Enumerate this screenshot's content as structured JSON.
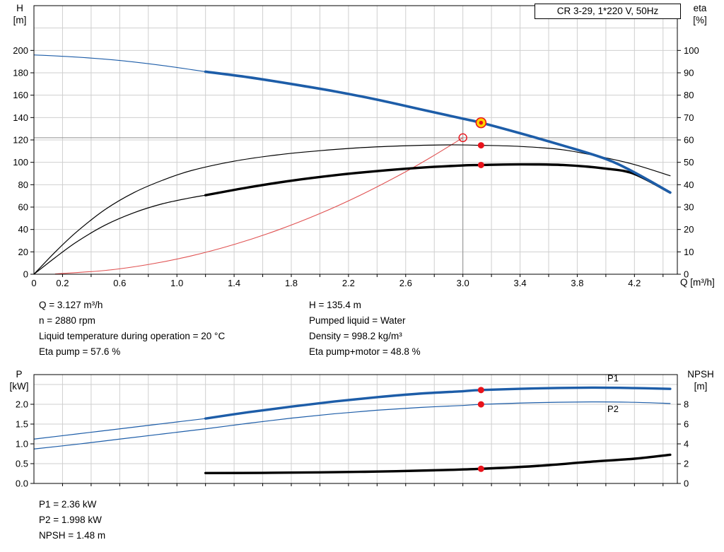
{
  "header": {
    "pump_title": "CR 3-29, 1*220 V, 50Hz"
  },
  "readouts": {
    "left": [
      "Q = 3.127 m³/h",
      "n = 2880 rpm",
      "Liquid temperature during operation = 20 °C",
      "Eta pump = 57.6 %"
    ],
    "right": [
      "H = 135.4 m",
      "Pumped liquid = Water",
      "Density = 998.2 kg/m³",
      "Eta pump+motor = 48.8 %"
    ],
    "bottom": [
      "P1 = 2.36 kW",
      "P2 = 1.998 kW",
      "NPSH = 1.48 m"
    ]
  },
  "colors": {
    "curve_blue": "#1d5da8",
    "curve_black": "#000000",
    "system_red": "#e05252",
    "marker_red": "#e8131b",
    "marker_yellow": "#ffd400",
    "grid": "#cfcfcf",
    "crosshair": "#909090",
    "frame": "#000000"
  },
  "chart_data": [
    {
      "id": "qh-chart",
      "type": "line",
      "x_axis": {
        "label": "Q [m³/h]",
        "min": 0,
        "max": 4.5,
        "grid_step": 0.2,
        "ticks": [
          [
            0,
            "0"
          ],
          [
            0.2,
            "0.2"
          ],
          [
            0.6,
            "0.6"
          ],
          [
            1.0,
            "1.0"
          ],
          [
            1.4,
            "1.4"
          ],
          [
            1.8,
            "1.8"
          ],
          [
            2.2,
            "2.2"
          ],
          [
            2.6,
            "2.6"
          ],
          [
            3.0,
            "3.0"
          ],
          [
            3.4,
            "3.4"
          ],
          [
            3.8,
            "3.8"
          ],
          [
            4.2,
            "4.2"
          ]
        ]
      },
      "y_left": {
        "title": "H",
        "unit": "[m]",
        "min": 0,
        "max": 240,
        "grid_step": 20,
        "ticks": [
          [
            0,
            "0"
          ],
          [
            20,
            "20"
          ],
          [
            40,
            "40"
          ],
          [
            60,
            "60"
          ],
          [
            80,
            "80"
          ],
          [
            100,
            "100"
          ],
          [
            120,
            "120"
          ],
          [
            140,
            "140"
          ],
          [
            160,
            "160"
          ],
          [
            180,
            "180"
          ],
          [
            200,
            "200"
          ]
        ]
      },
      "y_right": {
        "title": "eta",
        "unit": "[%]",
        "min": 0,
        "max": 120,
        "ticks": [
          [
            0,
            "0"
          ],
          [
            10,
            "10"
          ],
          [
            20,
            "20"
          ],
          [
            30,
            "30"
          ],
          [
            40,
            "40"
          ],
          [
            50,
            "50"
          ],
          [
            60,
            "60"
          ],
          [
            70,
            "70"
          ],
          [
            80,
            "80"
          ],
          [
            90,
            "90"
          ],
          [
            100,
            "100"
          ]
        ]
      },
      "crosshair": {
        "x": 3.0,
        "y": 122,
        "y_top": 139
      },
      "series": [
        {
          "name": "system-curve",
          "axis": "left",
          "color_key": "system_red",
          "width": 1.1,
          "points": [
            [
              0.15,
              0.3
            ],
            [
              0.5,
              3.4
            ],
            [
              0.8,
              8.7
            ],
            [
              1.1,
              16.4
            ],
            [
              1.4,
              26.6
            ],
            [
              1.7,
              39.2
            ],
            [
              2.0,
              54.2
            ],
            [
              2.3,
              71.7
            ],
            [
              2.6,
              91.6
            ],
            [
              2.8,
              106.3
            ],
            [
              3.0,
              122
            ]
          ]
        },
        {
          "name": "eta-pump-curve",
          "axis": "right",
          "color_key": "curve_black",
          "width": 1.2,
          "points": [
            [
              0,
              0
            ],
            [
              0.15,
              10
            ],
            [
              0.3,
              19
            ],
            [
              0.5,
              29
            ],
            [
              0.7,
              36.5
            ],
            [
              0.9,
              42
            ],
            [
              1.1,
              46.3
            ],
            [
              1.4,
              50.5
            ],
            [
              1.7,
              53.3
            ],
            [
              2.0,
              55.2
            ],
            [
              2.3,
              56.6
            ],
            [
              2.6,
              57.4
            ],
            [
              2.9,
              57.8
            ],
            [
              3.127,
              57.6
            ],
            [
              3.4,
              57.1
            ],
            [
              3.7,
              55.6
            ],
            [
              4.0,
              52
            ],
            [
              4.2,
              49
            ],
            [
              4.45,
              44
            ]
          ]
        },
        {
          "name": "eta-pump-motor-curve-min-flow",
          "axis": "right",
          "color_key": "curve_black",
          "width": 1.2,
          "points": [
            [
              0,
              0
            ],
            [
              0.15,
              7.5
            ],
            [
              0.3,
              14.5
            ],
            [
              0.5,
              22
            ],
            [
              0.7,
              27.5
            ],
            [
              0.9,
              31.5
            ],
            [
              1.1,
              34.2
            ],
            [
              1.2,
              35.3
            ]
          ]
        },
        {
          "name": "eta-pump-motor-curve",
          "axis": "right",
          "color_key": "curve_black",
          "width": 3.4,
          "points": [
            [
              1.2,
              35.3
            ],
            [
              1.5,
              38.8
            ],
            [
              1.8,
              41.8
            ],
            [
              2.1,
              44.2
            ],
            [
              2.4,
              46.1
            ],
            [
              2.7,
              47.6
            ],
            [
              3.0,
              48.6
            ],
            [
              3.127,
              48.8
            ],
            [
              3.4,
              49.1
            ],
            [
              3.7,
              48.8
            ],
            [
              4.0,
              47.2
            ],
            [
              4.2,
              44.8
            ],
            [
              4.45,
              36.5
            ]
          ]
        },
        {
          "name": "qh-curve-min-flow",
          "axis": "left",
          "color_key": "curve_blue",
          "width": 1.2,
          "points": [
            [
              0,
              196
            ],
            [
              0.3,
              194
            ],
            [
              0.6,
              191
            ],
            [
              0.9,
              186.5
            ],
            [
              1.2,
              181
            ]
          ]
        },
        {
          "name": "qh-curve",
          "axis": "left",
          "color_key": "curve_blue",
          "width": 3.6,
          "points": [
            [
              1.2,
              181
            ],
            [
              1.5,
              176
            ],
            [
              1.8,
              170
            ],
            [
              2.1,
              163.5
            ],
            [
              2.4,
              156
            ],
            [
              2.7,
              147.5
            ],
            [
              3.0,
              139
            ],
            [
              3.127,
              135.4
            ],
            [
              3.4,
              126
            ],
            [
              3.7,
              115
            ],
            [
              4.0,
              103
            ],
            [
              4.2,
              91
            ],
            [
              4.45,
              73
            ]
          ]
        }
      ],
      "markers": [
        {
          "name": "requested-duty-point",
          "type": "open",
          "axis": "left",
          "x": 3.0,
          "y": 122
        },
        {
          "name": "operating-point",
          "type": "ring",
          "axis": "left",
          "x": 3.127,
          "y": 135.4
        },
        {
          "name": "eta-pump-point",
          "type": "dot",
          "axis": "right",
          "x": 3.127,
          "y": 57.6
        },
        {
          "name": "eta-pump-motor-point",
          "type": "dot",
          "axis": "right",
          "x": 3.127,
          "y": 48.8
        }
      ],
      "annotations": []
    },
    {
      "id": "power-npsh-chart",
      "type": "line",
      "x_axis": {
        "label": "",
        "min": 0,
        "max": 4.5,
        "grid_step": 0.2,
        "ticks": []
      },
      "y_left": {
        "title": "P",
        "unit": "[kW]",
        "min": 0,
        "max": 2.75,
        "grid_step": 0.5,
        "ticks": [
          [
            0,
            "0.0"
          ],
          [
            0.5,
            "0.5"
          ],
          [
            1,
            "1.0"
          ],
          [
            1.5,
            "1.5"
          ],
          [
            2,
            "2.0"
          ]
        ]
      },
      "y_right": {
        "title": "NPSH",
        "unit": "[m]",
        "min": 0,
        "max": 11,
        "ticks": [
          [
            0,
            "0"
          ],
          [
            2,
            "2"
          ],
          [
            4,
            "4"
          ],
          [
            6,
            "6"
          ],
          [
            8,
            "8"
          ]
        ]
      },
      "series": [
        {
          "name": "p1-curve-min-flow",
          "axis": "left",
          "color_key": "curve_blue",
          "width": 1.2,
          "points": [
            [
              0,
              1.12
            ],
            [
              0.3,
              1.25
            ],
            [
              0.6,
              1.38
            ],
            [
              0.9,
              1.51
            ],
            [
              1.2,
              1.64
            ]
          ]
        },
        {
          "name": "p1-curve",
          "axis": "left",
          "color_key": "curve_blue",
          "width": 3.4,
          "points": [
            [
              1.2,
              1.64
            ],
            [
              1.5,
              1.8
            ],
            [
              1.8,
              1.94
            ],
            [
              2.1,
              2.07
            ],
            [
              2.4,
              2.18
            ],
            [
              2.7,
              2.27
            ],
            [
              3.0,
              2.33
            ],
            [
              3.127,
              2.36
            ],
            [
              3.5,
              2.4
            ],
            [
              3.9,
              2.42
            ],
            [
              4.2,
              2.41
            ],
            [
              4.45,
              2.39
            ]
          ]
        },
        {
          "name": "p2-curve",
          "axis": "left",
          "color_key": "curve_blue",
          "width": 1.2,
          "points": [
            [
              0,
              0.87
            ],
            [
              0.3,
              0.99
            ],
            [
              0.6,
              1.12
            ],
            [
              0.9,
              1.25
            ],
            [
              1.2,
              1.38
            ],
            [
              1.5,
              1.52
            ],
            [
              1.8,
              1.65
            ],
            [
              2.1,
              1.76
            ],
            [
              2.4,
              1.85
            ],
            [
              2.7,
              1.92
            ],
            [
              3.0,
              1.97
            ],
            [
              3.127,
              1.998
            ],
            [
              3.5,
              2.04
            ],
            [
              3.9,
              2.06
            ],
            [
              4.2,
              2.05
            ],
            [
              4.45,
              2.02
            ]
          ]
        },
        {
          "name": "npsh-curve",
          "axis": "right",
          "color_key": "curve_black",
          "width": 3.4,
          "points": [
            [
              1.2,
              1.05
            ],
            [
              1.6,
              1.07
            ],
            [
              2.0,
              1.12
            ],
            [
              2.4,
              1.2
            ],
            [
              2.8,
              1.33
            ],
            [
              3.127,
              1.48
            ],
            [
              3.5,
              1.75
            ],
            [
              3.9,
              2.2
            ],
            [
              4.2,
              2.5
            ],
            [
              4.45,
              2.9
            ]
          ]
        }
      ],
      "markers": [
        {
          "name": "p1-point",
          "type": "dot",
          "axis": "left",
          "x": 3.127,
          "y": 2.36
        },
        {
          "name": "p2-point",
          "type": "dot",
          "axis": "left",
          "x": 3.127,
          "y": 1.998
        },
        {
          "name": "npsh-point",
          "type": "dot",
          "axis": "right",
          "x": 3.127,
          "y": 1.48
        }
      ],
      "annotations": [
        {
          "text": "P1",
          "axis": "left",
          "x": 4.05,
          "y": 2.58
        },
        {
          "text": "P2",
          "axis": "left",
          "x": 4.05,
          "y": 1.8
        }
      ]
    }
  ]
}
